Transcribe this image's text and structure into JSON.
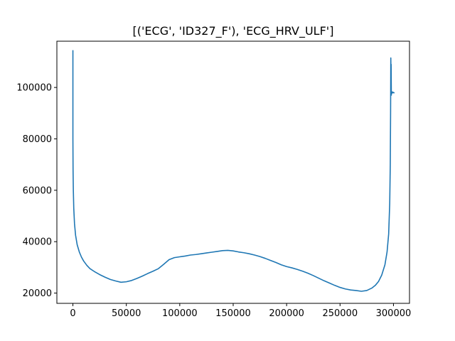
{
  "chart_data": {
    "type": "line",
    "title": "[('ECG', 'ID327_F'), 'ECG_HRV_ULF']",
    "xlabel": "",
    "ylabel": "",
    "xlim": [
      -15000,
      315000
    ],
    "ylim": [
      16000,
      118000
    ],
    "x_ticks": [
      0,
      50000,
      100000,
      150000,
      200000,
      250000,
      300000
    ],
    "x_tick_labels": [
      "0",
      "50000",
      "100000",
      "150000",
      "200000",
      "250000",
      "300000"
    ],
    "y_ticks": [
      20000,
      40000,
      60000,
      80000,
      100000
    ],
    "y_tick_labels": [
      "20000",
      "40000",
      "60000",
      "80000",
      "100000"
    ],
    "grid": false,
    "line_color": "#1f77b4",
    "series": [
      {
        "name": "",
        "x": [
          0,
          0,
          150,
          400,
          800,
          1500,
          2500,
          4000,
          6000,
          8000,
          10000,
          13000,
          16000,
          20000,
          25000,
          30000,
          35000,
          40000,
          45000,
          50000,
          55000,
          60000,
          65000,
          70000,
          75000,
          80000,
          85000,
          90000,
          95000,
          100000,
          105000,
          110000,
          115000,
          120000,
          125000,
          130000,
          135000,
          140000,
          145000,
          150000,
          155000,
          160000,
          165000,
          170000,
          175000,
          180000,
          185000,
          190000,
          195000,
          200000,
          205000,
          210000,
          215000,
          220000,
          225000,
          230000,
          235000,
          240000,
          245000,
          250000,
          255000,
          260000,
          265000,
          270000,
          275000,
          280000,
          283000,
          286000,
          289000,
          292000,
          294000,
          295500,
          296500,
          297000,
          297300,
          297500,
          297700,
          297800,
          298000,
          298200,
          298500,
          298800,
          299500,
          300200,
          301000
        ],
        "y": [
          114500,
          80000,
          68000,
          60000,
          53000,
          47000,
          42500,
          38800,
          36000,
          34000,
          32500,
          30800,
          29500,
          28400,
          27200,
          26200,
          25300,
          24700,
          24200,
          24400,
          24900,
          25700,
          26600,
          27600,
          28500,
          29500,
          31200,
          33000,
          33800,
          34100,
          34400,
          34800,
          35000,
          35300,
          35600,
          35900,
          36200,
          36500,
          36600,
          36400,
          36000,
          35700,
          35300,
          34800,
          34200,
          33500,
          32700,
          31900,
          31000,
          30300,
          29800,
          29200,
          28500,
          27700,
          26800,
          25800,
          24800,
          23900,
          23000,
          22200,
          21600,
          21200,
          21000,
          20700,
          21000,
          22000,
          23000,
          24500,
          27000,
          31000,
          36000,
          43000,
          55000,
          70000,
          90000,
          111500,
          104000,
          109000,
          97000,
          98500,
          98000,
          97800,
          98200,
          97900,
          98000
        ]
      }
    ]
  }
}
